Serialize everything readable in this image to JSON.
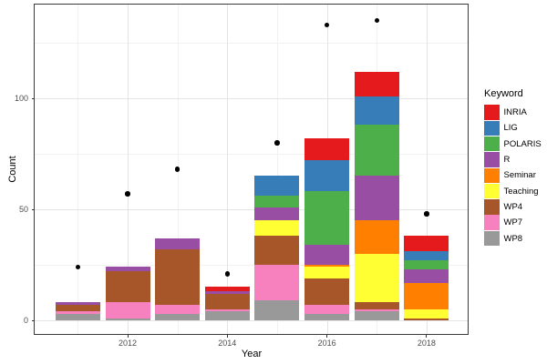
{
  "chart": {
    "xlabel": "Year",
    "ylabel": "Count",
    "legend_title": "Keyword"
  },
  "chart_data": {
    "type": "bar",
    "stacked": true,
    "title": "",
    "xlabel": "Year",
    "ylabel": "Count",
    "legend_title": "Keyword",
    "legend_position": "right",
    "grid": true,
    "ylim": [
      0,
      140
    ],
    "categories": [
      2011,
      2012,
      2013,
      2014,
      2015,
      2016,
      2017,
      2018
    ],
    "stack_note": "stacked bottom-to-top: WP8, WP7, WP4, Teaching, Seminar, R, POLARIS, LIG, INRIA (reverse legend order)",
    "series": [
      {
        "name": "INRIA",
        "color": "#E41A1C",
        "values": [
          0,
          0,
          0,
          2,
          0,
          10,
          11,
          7
        ]
      },
      {
        "name": "LIG",
        "color": "#377EB8",
        "values": [
          0,
          0,
          0,
          0,
          9,
          14,
          13,
          4
        ]
      },
      {
        "name": "POLARIS",
        "color": "#4DAF4A",
        "values": [
          0,
          0,
          0,
          0,
          5,
          24,
          23,
          4
        ]
      },
      {
        "name": "R",
        "color": "#984EA3",
        "values": [
          1,
          2,
          5,
          1,
          6,
          9,
          20,
          6
        ]
      },
      {
        "name": "Seminar",
        "color": "#FF7F00",
        "values": [
          0,
          0,
          0,
          0,
          0,
          1,
          15,
          12
        ]
      },
      {
        "name": "Teaching",
        "color": "#FFFF33",
        "values": [
          0,
          0,
          0,
          0,
          7,
          5,
          22,
          4
        ]
      },
      {
        "name": "WP4",
        "color": "#A65628",
        "values": [
          3,
          14,
          25,
          7,
          13,
          12,
          3,
          1
        ]
      },
      {
        "name": "WP7",
        "color": "#F781BF",
        "values": [
          1,
          7,
          4,
          1,
          16,
          4,
          1,
          0
        ]
      },
      {
        "name": "WP8",
        "color": "#999999",
        "values": [
          3,
          1,
          3,
          4,
          9,
          3,
          4,
          0
        ]
      }
    ],
    "bar_totals": [
      8,
      24,
      37,
      15,
      65,
      82,
      112,
      38
    ],
    "points_series": {
      "name": "yearly-points",
      "marker": "circle",
      "color": "#000000",
      "values": [
        24,
        57,
        68,
        21,
        80,
        133,
        135,
        48
      ]
    },
    "x_ticks": [
      {
        "value": 2012,
        "label": "2012"
      },
      {
        "value": 2014,
        "label": "2014"
      },
      {
        "value": 2016,
        "label": "2016"
      },
      {
        "value": 2018,
        "label": "2018"
      }
    ],
    "y_ticks": [
      {
        "value": 0,
        "label": "0"
      },
      {
        "value": 50,
        "label": "50"
      },
      {
        "value": 100,
        "label": "100"
      }
    ],
    "x_minor_gridlines": [
      2011,
      2013,
      2015,
      2017
    ],
    "y_minor_gridlines": [
      25,
      75,
      125
    ],
    "colors": {
      "major_grid": "#E4E4E4",
      "minor_grid": "#F2F2F2",
      "panel_border": "#3A3A3A",
      "tick_text": "#4D4D4D",
      "background": "#FFFFFF"
    }
  }
}
